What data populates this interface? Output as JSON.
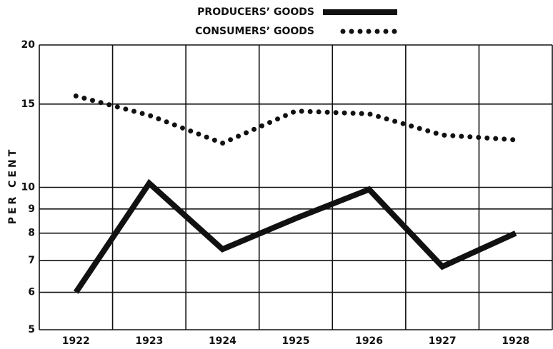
{
  "chart_data": {
    "type": "line",
    "y_label": "PER CENT",
    "categories": [
      "1922",
      "1923",
      "1924",
      "1925",
      "1926",
      "1927",
      "1928"
    ],
    "series": [
      {
        "name": "PRODUCERS’ GOODS",
        "color": "#111111",
        "style": "solid",
        "values": [
          6.0,
          10.2,
          7.4,
          8.6,
          9.9,
          6.8,
          8.0
        ]
      },
      {
        "name": "CONSUMERS’ GOODS",
        "color": "#111111",
        "style": "dotted",
        "values": [
          15.6,
          14.2,
          12.4,
          14.5,
          14.3,
          12.9,
          12.6
        ]
      }
    ],
    "ylim": [
      5,
      20
    ],
    "yticks": [
      5,
      6,
      7,
      8,
      9,
      10,
      15,
      20
    ],
    "yscale": "log",
    "grid": true,
    "legend": "top"
  }
}
